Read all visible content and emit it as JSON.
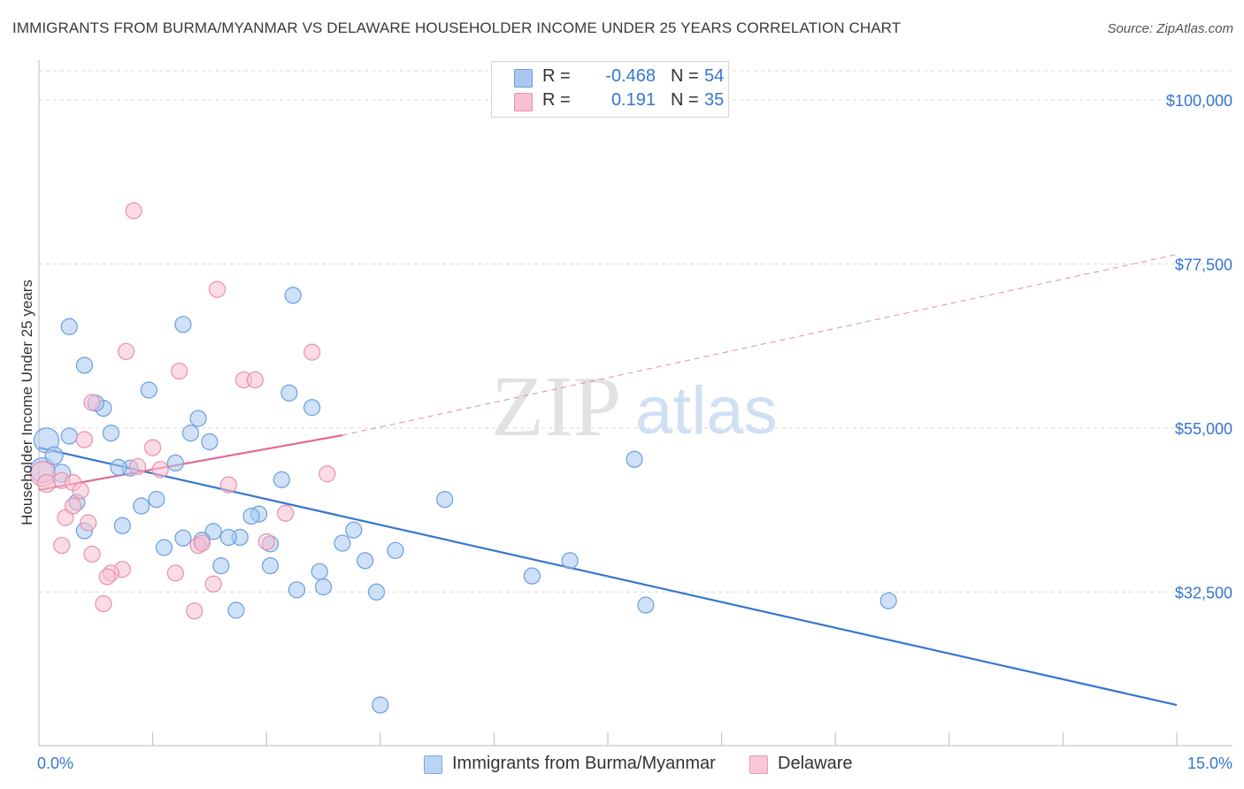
{
  "title": "IMMIGRANTS FROM BURMA/MYANMAR VS DELAWARE HOUSEHOLDER INCOME UNDER 25 YEARS CORRELATION CHART",
  "source": "Source: ZipAtlas.com",
  "watermark": {
    "zip": "ZIP",
    "atlas": "atlas"
  },
  "legend": {
    "rows": [
      {
        "r_label": "R =",
        "r_value": "-0.468",
        "n_label": "N =",
        "n_value": "54",
        "color": "#a8c8f0",
        "edge": "#6a9ee0"
      },
      {
        "r_label": "R =",
        "r_value": "0.191",
        "n_label": "N =",
        "n_value": "35",
        "color": "#f8c0d0",
        "edge": "#e890aa"
      }
    ]
  },
  "bottom_legend": [
    {
      "label": "Immigrants from Burma/Myanmar",
      "color": "#bcd4f4",
      "edge": "#7aa6e0"
    },
    {
      "label": "Delaware",
      "color": "#f9c8d6",
      "edge": "#ea9ab2"
    }
  ],
  "chart_data": {
    "type": "scatter",
    "title": "IMMIGRANTS FROM BURMA/MYANMAR VS DELAWARE HOUSEHOLDER INCOME UNDER 25 YEARS CORRELATION CHART",
    "xlabel": "",
    "ylabel": "Householder Income Under 25 years",
    "xlim": [
      0,
      15
    ],
    "ylim": [
      13000,
      104000
    ],
    "x_tick_labels": [
      {
        "value": 0,
        "label": "0.0%"
      },
      {
        "value": 15,
        "label": "15.0%"
      }
    ],
    "y_tick_labels": [
      {
        "value": 100000,
        "label": "$100,000"
      },
      {
        "value": 77500,
        "label": "$77,500"
      },
      {
        "value": 55000,
        "label": "$55,000"
      },
      {
        "value": 32500,
        "label": "$32,500"
      }
    ],
    "grid": true,
    "series": [
      {
        "name": "Immigrants from Burma/Myanmar",
        "color": "#a8c8f0",
        "edge": "#6a9ee0",
        "trend": {
          "x0": 0,
          "y0": 52300,
          "x1": 15,
          "y1": 17000,
          "style": "solid",
          "color": "#3776cf"
        },
        "points": [
          [
            0.1,
            53300,
            14
          ],
          [
            0.05,
            49200,
            14
          ],
          [
            0.2,
            51200,
            10
          ],
          [
            0.3,
            48800,
            10
          ],
          [
            0.5,
            44800,
            9
          ],
          [
            0.4,
            53900,
            9
          ],
          [
            0.6,
            63600,
            9
          ],
          [
            0.4,
            68900,
            9
          ],
          [
            0.85,
            57700,
            9
          ],
          [
            0.95,
            54300,
            9
          ],
          [
            0.75,
            58400,
            9
          ],
          [
            1.2,
            49500,
            9
          ],
          [
            1.05,
            49600,
            9
          ],
          [
            1.45,
            60200,
            9
          ],
          [
            1.35,
            44300,
            9
          ],
          [
            1.55,
            45200,
            9
          ],
          [
            1.8,
            50200,
            9
          ],
          [
            1.9,
            69200,
            9
          ],
          [
            2.0,
            54300,
            9
          ],
          [
            2.1,
            56300,
            9
          ],
          [
            2.25,
            53100,
            9
          ],
          [
            3.35,
            73200,
            9
          ],
          [
            3.3,
            59800,
            9
          ],
          [
            3.6,
            57800,
            9
          ],
          [
            3.2,
            47900,
            9
          ],
          [
            2.9,
            43200,
            9
          ],
          [
            2.8,
            42900,
            9
          ],
          [
            2.65,
            40000,
            9
          ],
          [
            2.5,
            40000,
            9
          ],
          [
            2.3,
            40800,
            9
          ],
          [
            2.15,
            39600,
            9
          ],
          [
            1.9,
            39900,
            9
          ],
          [
            1.65,
            38600,
            9
          ],
          [
            1.1,
            41600,
            9
          ],
          [
            0.6,
            40900,
            9
          ],
          [
            2.4,
            36100,
            9
          ],
          [
            2.6,
            30000,
            9
          ],
          [
            3.05,
            36100,
            9
          ],
          [
            3.05,
            39100,
            9
          ],
          [
            3.4,
            32800,
            9
          ],
          [
            3.7,
            35300,
            9
          ],
          [
            3.75,
            33200,
            9
          ],
          [
            4.0,
            39200,
            9
          ],
          [
            4.15,
            41000,
            9
          ],
          [
            4.3,
            36800,
            9
          ],
          [
            4.45,
            32500,
            9
          ],
          [
            4.7,
            38200,
            9
          ],
          [
            5.35,
            45200,
            9
          ],
          [
            6.5,
            34700,
            9
          ],
          [
            7.0,
            36800,
            9
          ],
          [
            7.85,
            50700,
            9
          ],
          [
            8.0,
            30700,
            9
          ],
          [
            11.2,
            31300,
            9
          ],
          [
            4.5,
            17000,
            9
          ]
        ]
      },
      {
        "name": "Delaware",
        "color": "#f8c0d0",
        "edge": "#e890aa",
        "trend": {
          "x0": 0,
          "y0": 46500,
          "x1": 4.0,
          "y1": 54000,
          "x2": 15,
          "y2": 78800,
          "style": "solid-then-dashed",
          "color": "#e06a92"
        },
        "points": [
          [
            0.05,
            48700,
            14
          ],
          [
            0.1,
            47400,
            10
          ],
          [
            0.3,
            47800,
            9
          ],
          [
            0.45,
            47500,
            9
          ],
          [
            0.55,
            46400,
            9
          ],
          [
            0.35,
            42700,
            9
          ],
          [
            0.45,
            44300,
            9
          ],
          [
            0.65,
            42000,
            9
          ],
          [
            0.3,
            38900,
            9
          ],
          [
            0.7,
            37700,
            9
          ],
          [
            0.7,
            58500,
            9
          ],
          [
            0.6,
            53400,
            9
          ],
          [
            1.15,
            65500,
            9
          ],
          [
            1.25,
            84800,
            9
          ],
          [
            1.3,
            49700,
            9
          ],
          [
            1.5,
            52300,
            9
          ],
          [
            1.6,
            49300,
            9
          ],
          [
            1.85,
            62800,
            9
          ],
          [
            1.8,
            35100,
            9
          ],
          [
            2.1,
            38900,
            9
          ],
          [
            2.3,
            33600,
            9
          ],
          [
            2.05,
            29900,
            9
          ],
          [
            1.1,
            35600,
            9
          ],
          [
            0.95,
            35100,
            9
          ],
          [
            0.9,
            34600,
            9
          ],
          [
            0.85,
            30900,
            9
          ],
          [
            2.35,
            74000,
            9
          ],
          [
            2.5,
            47200,
            9
          ],
          [
            2.7,
            61600,
            9
          ],
          [
            2.85,
            61600,
            9
          ],
          [
            3.25,
            43300,
            9
          ],
          [
            3.0,
            39400,
            9
          ],
          [
            3.6,
            65400,
            9
          ],
          [
            3.8,
            48700,
            9
          ],
          [
            2.15,
            39200,
            9
          ]
        ]
      }
    ]
  }
}
